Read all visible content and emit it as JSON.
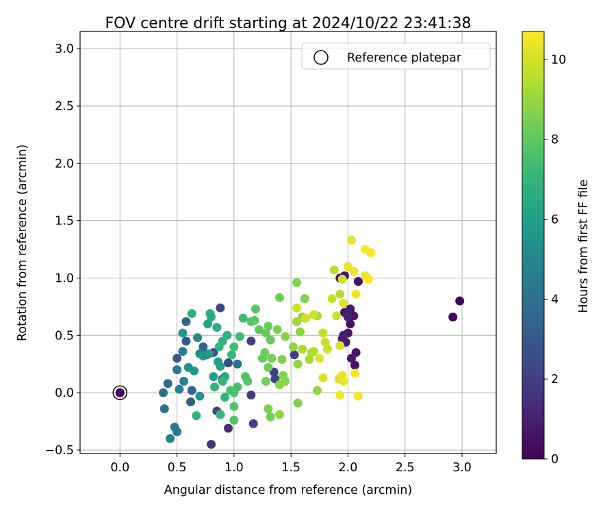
{
  "chart_data": {
    "type": "scatter",
    "title": "FOV centre drift starting at 2024/10/22 23:41:38",
    "xlabel": "Angular distance from reference (arcmin)",
    "ylabel": "Rotation from reference (arcmin)",
    "xlim": [
      -0.35,
      3.3
    ],
    "ylim": [
      -0.53,
      3.15
    ],
    "xticks": [
      "0.0",
      "0.5",
      "1.0",
      "1.5",
      "2.0",
      "2.5",
      "3.0"
    ],
    "yticks": [
      "−0.5",
      "0.0",
      "0.5",
      "1.0",
      "1.5",
      "2.0",
      "2.5",
      "3.0"
    ],
    "grid": true,
    "legend": {
      "position": "top-right",
      "entries": [
        "Reference platepar"
      ]
    },
    "reference_point": {
      "x": 0.0,
      "y": 0.0,
      "hours": 0.0
    },
    "colorbar": {
      "label": "Hours from first FF file",
      "range": [
        0,
        10.7
      ],
      "ticks": [
        "0",
        "2",
        "4",
        "6",
        "8",
        "10"
      ],
      "colormap": "viridis",
      "colors": [
        "#440154",
        "#482878",
        "#3e4989",
        "#31688e",
        "#26828e",
        "#1f9e89",
        "#35b779",
        "#6ece58",
        "#b5de2b",
        "#fde725"
      ]
    },
    "series": [
      {
        "points": [
          [
            2.92,
            0.66,
            0.1
          ],
          [
            2.98,
            0.8,
            0.1
          ],
          [
            0.0,
            0.0,
            0.2
          ],
          [
            1.93,
            1.0,
            0.4
          ],
          [
            1.97,
            1.02,
            0.5
          ],
          [
            2.09,
            0.97,
            0.5
          ],
          [
            1.95,
            0.47,
            0.6
          ],
          [
            2.0,
            0.52,
            0.7
          ],
          [
            2.02,
            0.6,
            0.5
          ],
          [
            1.97,
            0.7,
            0.6
          ],
          [
            2.05,
            0.67,
            0.6
          ],
          [
            2.03,
            0.3,
            0.7
          ],
          [
            2.07,
            0.35,
            0.6
          ],
          [
            2.06,
            0.24,
            0.6
          ],
          [
            2.02,
            0.73,
            0.8
          ],
          [
            1.98,
            0.44,
            0.8
          ],
          [
            1.96,
            0.5,
            0.9
          ],
          [
            2.0,
            0.66,
            1.0
          ],
          [
            0.88,
            0.74,
            2.2
          ],
          [
            0.8,
            -0.45,
            1.7
          ],
          [
            0.95,
            -0.31,
            1.5
          ],
          [
            1.17,
            -0.27,
            2.0
          ],
          [
            1.15,
            -0.02,
            1.9
          ],
          [
            1.35,
            0.18,
            2.1
          ],
          [
            1.36,
            0.12,
            2.1
          ],
          [
            1.15,
            0.45,
            2.1
          ],
          [
            1.53,
            0.33,
            2.1
          ],
          [
            0.88,
            -0.19,
            2.0
          ],
          [
            0.85,
            -0.16,
            2.3
          ],
          [
            0.82,
            0.35,
            2.5
          ],
          [
            0.9,
            0.12,
            2.8
          ],
          [
            0.95,
            0.26,
            2.5
          ],
          [
            0.5,
            0.3,
            3.0
          ],
          [
            0.58,
            0.45,
            3.0
          ],
          [
            0.58,
            0.62,
            3.3
          ],
          [
            0.62,
            -0.08,
            3.2
          ],
          [
            0.63,
            0.02,
            3.4
          ],
          [
            0.73,
            0.4,
            3.3
          ],
          [
            0.76,
            0.33,
            3.6
          ],
          [
            0.42,
            0.08,
            3.6
          ],
          [
            0.39,
            -0.14,
            3.8
          ],
          [
            0.38,
            0.0,
            4.0
          ],
          [
            0.48,
            -0.3,
            4.3
          ],
          [
            0.5,
            -0.34,
            4.4
          ],
          [
            0.44,
            -0.4,
            4.6
          ],
          [
            0.55,
            0.36,
            4.4
          ],
          [
            0.52,
            0.03,
            4.7
          ],
          [
            0.5,
            0.2,
            4.5
          ],
          [
            0.56,
            0.1,
            4.8
          ],
          [
            1.03,
            0.25,
            3.8
          ],
          [
            0.68,
            0.48,
            5.0
          ],
          [
            0.7,
            0.34,
            5.2
          ],
          [
            0.55,
            0.52,
            5.6
          ],
          [
            0.6,
            0.22,
            5.5
          ],
          [
            0.65,
            0.19,
            5.8
          ],
          [
            0.73,
            0.32,
            5.6
          ],
          [
            0.78,
            0.34,
            5.9
          ],
          [
            0.7,
            -0.03,
            5.7
          ],
          [
            0.86,
            0.27,
            6.0
          ],
          [
            0.88,
            0.23,
            6.1
          ],
          [
            0.92,
            0.14,
            6.3
          ],
          [
            0.82,
            0.14,
            6.0
          ],
          [
            0.77,
            0.6,
            6.2
          ],
          [
            0.8,
            0.66,
            6.6
          ],
          [
            0.79,
            0.69,
            6.5
          ],
          [
            0.63,
            0.69,
            6.8
          ],
          [
            0.85,
            0.57,
            6.6
          ],
          [
            0.9,
            0.45,
            6.8
          ],
          [
            0.94,
            0.5,
            6.8
          ],
          [
            0.87,
            0.4,
            7.0
          ],
          [
            0.83,
            0.05,
            7.0
          ],
          [
            0.88,
            -0.19,
            7.2
          ],
          [
            0.67,
            -0.2,
            7.1
          ],
          [
            0.92,
            -0.04,
            7.1
          ],
          [
            0.9,
            0.1,
            7.0
          ],
          [
            0.98,
            0.33,
            7.2
          ],
          [
            1.0,
            0.4,
            7.4
          ],
          [
            1.05,
            0.49,
            7.3
          ],
          [
            1.08,
            0.65,
            7.3
          ],
          [
            1.0,
            0.0,
            7.6
          ],
          [
            1.03,
            0.05,
            7.5
          ],
          [
            0.97,
            0.02,
            7.6
          ],
          [
            1.0,
            -0.12,
            7.8
          ],
          [
            1.0,
            -0.24,
            7.8
          ],
          [
            1.1,
            0.14,
            7.7
          ],
          [
            1.12,
            0.1,
            7.8
          ],
          [
            1.15,
            0.62,
            7.8
          ],
          [
            1.18,
            0.63,
            7.9
          ],
          [
            1.19,
            0.73,
            7.9
          ],
          [
            1.22,
            0.55,
            8.0
          ],
          [
            1.28,
            0.52,
            8.1
          ],
          [
            1.3,
            0.58,
            8.2
          ],
          [
            1.32,
            0.46,
            8.1
          ],
          [
            1.25,
            0.3,
            8.2
          ],
          [
            1.27,
            0.35,
            8.3
          ],
          [
            1.3,
            0.22,
            8.3
          ],
          [
            1.33,
            0.3,
            8.4
          ],
          [
            1.28,
            0.1,
            8.4
          ],
          [
            1.3,
            -0.14,
            8.5
          ],
          [
            1.32,
            -0.21,
            8.4
          ],
          [
            1.38,
            0.55,
            8.5
          ],
          [
            1.4,
            0.83,
            8.3
          ],
          [
            1.42,
            0.29,
            8.6
          ],
          [
            1.43,
            0.15,
            8.6
          ],
          [
            1.45,
            0.49,
            8.7
          ],
          [
            1.4,
            0.07,
            8.8
          ],
          [
            1.45,
            0.1,
            8.7
          ],
          [
            1.4,
            -0.19,
            8.9
          ],
          [
            1.55,
            0.96,
            8.6
          ],
          [
            1.6,
            0.66,
            8.7
          ],
          [
            1.52,
            0.4,
            8.9
          ],
          [
            1.55,
            0.62,
            9.1
          ],
          [
            1.58,
            0.53,
            8.9
          ],
          [
            1.62,
            0.82,
            8.6
          ],
          [
            1.6,
            0.38,
            9.3
          ],
          [
            1.56,
            0.25,
            9.0
          ],
          [
            1.66,
            0.29,
            9.3
          ],
          [
            1.7,
            0.36,
            9.5
          ],
          [
            1.62,
            0.65,
            9.4
          ],
          [
            1.68,
            0.35,
            9.4
          ],
          [
            1.73,
            0.67,
            9.3
          ],
          [
            1.73,
            0.02,
            8.9
          ],
          [
            1.56,
            -0.09,
            8.5
          ],
          [
            1.78,
            0.52,
            9.7
          ],
          [
            1.8,
            0.44,
            9.8
          ],
          [
            1.82,
            0.38,
            9.9
          ],
          [
            1.86,
            0.82,
            9.8
          ],
          [
            1.88,
            1.07,
            9.6
          ],
          [
            1.9,
            0.67,
            9.8
          ],
          [
            1.93,
            0.86,
            9.6
          ],
          [
            1.95,
            0.99,
            9.9
          ],
          [
            1.93,
            0.41,
            10.0
          ],
          [
            1.96,
            0.78,
            10.2
          ],
          [
            1.92,
            0.12,
            10.2
          ],
          [
            1.95,
            0.15,
            10.3
          ],
          [
            1.96,
            0.1,
            10.4
          ],
          [
            1.93,
            -0.02,
            10.5
          ],
          [
            2.03,
            1.33,
            10.4
          ],
          [
            2.0,
            1.1,
            10.5
          ],
          [
            2.05,
            1.06,
            10.4
          ],
          [
            2.15,
            1.25,
            10.5
          ],
          [
            2.2,
            1.22,
            10.6
          ],
          [
            2.15,
            1.02,
            10.4
          ],
          [
            2.18,
            0.99,
            10.6
          ],
          [
            2.07,
            0.86,
            10.5
          ],
          [
            2.09,
            -0.03,
            10.6
          ],
          [
            2.06,
            0.17,
            10.6
          ],
          [
            1.75,
            0.3,
            10.2
          ],
          [
            1.78,
            0.13,
            10.2
          ],
          [
            1.63,
            0.65,
            10.0
          ],
          [
            1.55,
            0.74,
            9.9
          ],
          [
            1.7,
            0.68,
            9.9
          ]
        ]
      }
    ]
  }
}
